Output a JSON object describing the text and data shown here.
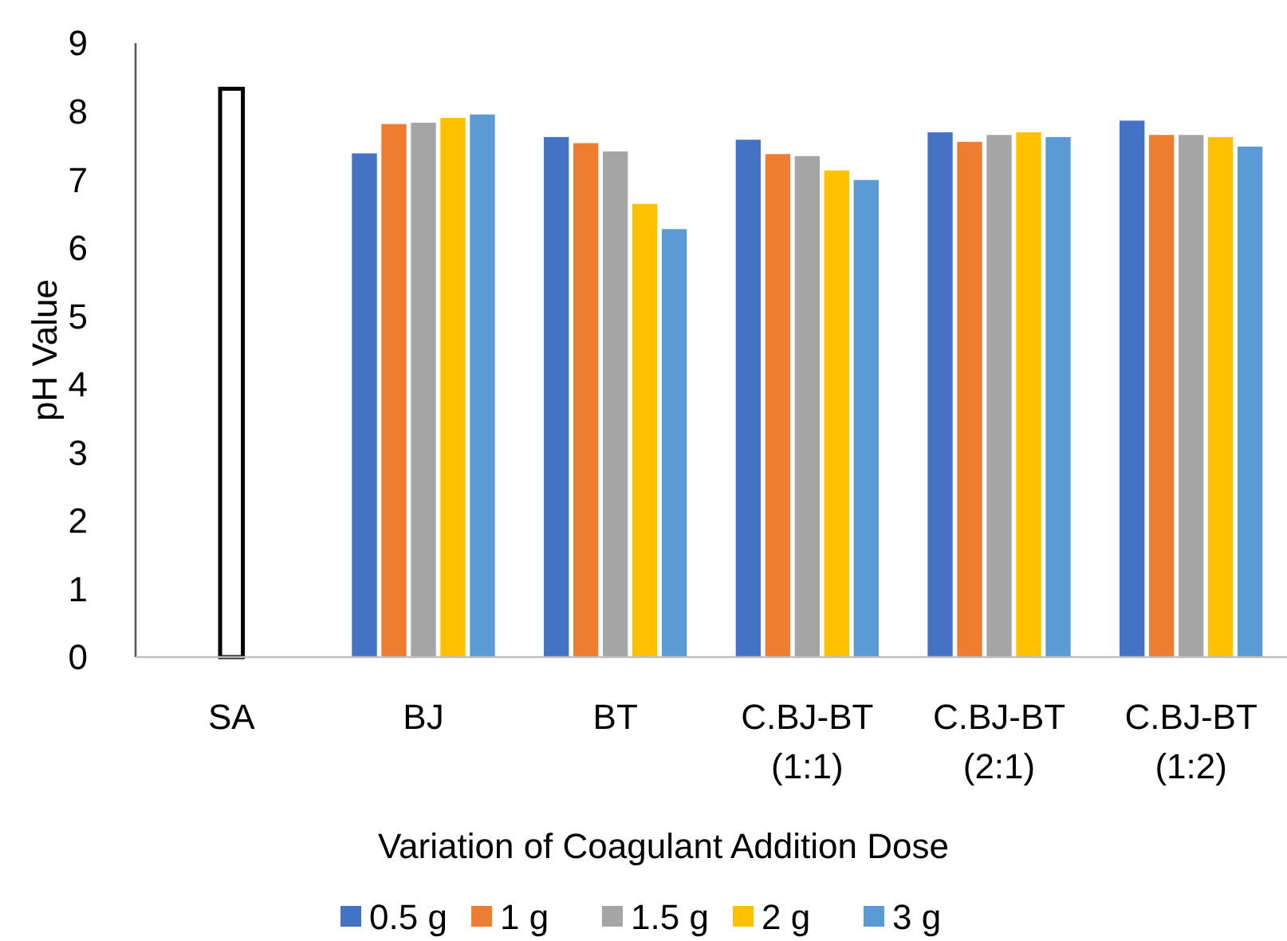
{
  "chart_data": {
    "type": "bar",
    "xlabel": "Variation of Coagulant Addition Dose",
    "ylabel": "pH Value",
    "categories": [
      "SA",
      "BJ",
      "BT",
      "C.BJ-BT\n(1:1)",
      "C.BJ-BT\n(2:1)",
      "C.BJ-BT\n(1:2)"
    ],
    "series": [
      {
        "name": "0.5 g",
        "color": "#4472c4",
        "values": [
          null,
          7.39,
          7.63,
          7.59,
          7.7,
          7.87
        ]
      },
      {
        "name": "1 g",
        "color": "#ed7d31",
        "values": [
          null,
          7.82,
          7.54,
          7.38,
          7.56,
          7.66
        ]
      },
      {
        "name": "1.5 g",
        "color": "#a5a5a5",
        "colors": [
          "#ffffff",
          "#a5a5a5",
          "#a5a5a5",
          "#a5a5a5",
          "#a5a5a5",
          "#a5a5a5"
        ],
        "values": [
          8.33,
          7.84,
          7.42,
          7.35,
          7.66,
          7.66
        ]
      },
      {
        "name": "2 g",
        "color": "#ffc000",
        "values": [
          null,
          7.91,
          6.65,
          7.14,
          7.7,
          7.63
        ]
      },
      {
        "name": "3 g",
        "color": "#5b9bd5",
        "values": [
          null,
          7.96,
          6.28,
          7.0,
          7.63,
          7.49
        ]
      }
    ],
    "ylim": [
      0,
      9
    ],
    "yticks": [
      0,
      1,
      2,
      3,
      4,
      5,
      6,
      7,
      8,
      9
    ],
    "grid": false,
    "legend": "bottom"
  }
}
